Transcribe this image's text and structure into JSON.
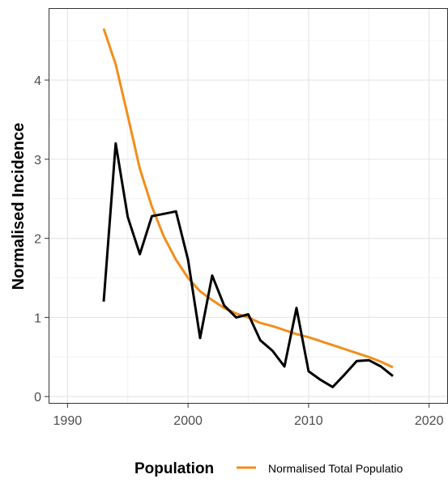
{
  "chart_data": {
    "type": "line",
    "ylabel": "Normalised Incidence",
    "xlim": [
      1988.5,
      2021.5
    ],
    "ylim": [
      -0.08,
      4.9
    ],
    "x_ticks": [
      1990,
      2000,
      2010,
      2020
    ],
    "x_tick_labels": [
      "1990",
      "2000",
      "2010",
      "2020"
    ],
    "y_ticks": [
      0,
      1,
      2,
      3,
      4
    ],
    "y_tick_labels": [
      "0",
      "1",
      "2",
      "3",
      "4"
    ],
    "grid": true,
    "legend": {
      "title": "Population",
      "placement": "bottom",
      "entries": [
        {
          "label": "Normalised Total Populatio",
          "color": "#f28e1c"
        }
      ]
    },
    "series": [
      {
        "name": "Normalised Total Populatio",
        "color": "#f28e1c",
        "x": [
          1993,
          1994,
          1995,
          1996,
          1997,
          1998,
          1999,
          2000,
          2001,
          2002,
          2003,
          2004,
          2005,
          2006,
          2007,
          2008,
          2009,
          2010,
          2011,
          2012,
          2013,
          2014,
          2015,
          2016,
          2017
        ],
        "y": [
          4.65,
          4.2,
          3.55,
          2.88,
          2.4,
          2.02,
          1.73,
          1.5,
          1.33,
          1.22,
          1.12,
          1.05,
          1.0,
          0.93,
          0.89,
          0.84,
          0.79,
          0.75,
          0.7,
          0.65,
          0.6,
          0.55,
          0.5,
          0.44,
          0.37
        ]
      },
      {
        "color": "#000000",
        "x": [
          1993,
          1994,
          1995,
          1996,
          1997,
          1998,
          1999,
          2000,
          2001,
          2002,
          2003,
          2004,
          2005,
          2006,
          2007,
          2008,
          2009,
          2010,
          2011,
          2012,
          2013,
          2014,
          2015,
          2016,
          2017
        ],
        "y": [
          1.2,
          3.2,
          2.27,
          1.8,
          2.28,
          2.31,
          2.34,
          1.73,
          0.74,
          1.53,
          1.15,
          1.0,
          1.04,
          0.71,
          0.58,
          0.38,
          1.12,
          0.32,
          0.21,
          0.12,
          0.28,
          0.45,
          0.46,
          0.38,
          0.26
        ]
      }
    ]
  }
}
